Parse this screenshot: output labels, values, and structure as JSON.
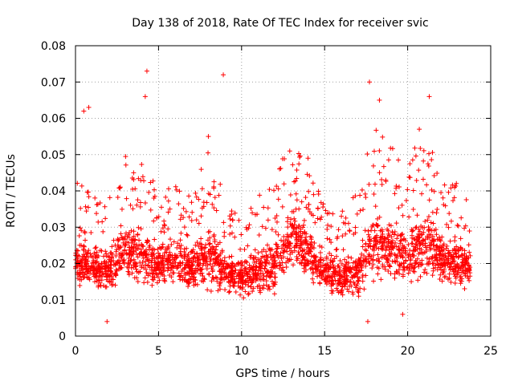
{
  "chart_data": {
    "type": "scatter",
    "title": "Day 138 of 2018, Rate Of TEC Index for receiver svic",
    "xlabel": "GPS time / hours",
    "ylabel": "ROTI / TECUs",
    "xlim": [
      0,
      25
    ],
    "ylim": [
      0,
      0.08
    ],
    "xticks": [
      0,
      5,
      10,
      15,
      20,
      25
    ],
    "yticks": [
      0,
      0.01,
      0.02,
      0.03,
      0.04,
      0.05,
      0.06,
      0.07,
      0.08
    ],
    "xtick_labels": [
      "0",
      "5",
      "10",
      "15",
      "20",
      "25"
    ],
    "ytick_labels": [
      "0",
      "0.01",
      "0.02",
      "0.03",
      "0.04",
      "0.05",
      "0.06",
      "0.07",
      "0.08"
    ],
    "grid": true,
    "marker": "+",
    "series_color": "#ff0000",
    "x_range": [
      0,
      23.8
    ],
    "sample_points": [
      {
        "x": 0.5,
        "y": 0.062
      },
      {
        "x": 0.8,
        "y": 0.063
      },
      {
        "x": 4.3,
        "y": 0.073
      },
      {
        "x": 4.2,
        "y": 0.066
      },
      {
        "x": 8.0,
        "y": 0.055
      },
      {
        "x": 8.9,
        "y": 0.072
      },
      {
        "x": 12.9,
        "y": 0.051
      },
      {
        "x": 14.0,
        "y": 0.049
      },
      {
        "x": 17.7,
        "y": 0.07
      },
      {
        "x": 18.3,
        "y": 0.065
      },
      {
        "x": 21.3,
        "y": 0.066
      },
      {
        "x": 20.7,
        "y": 0.057
      },
      {
        "x": 1.9,
        "y": 0.004
      },
      {
        "x": 17.6,
        "y": 0.004
      },
      {
        "x": 19.7,
        "y": 0.006
      }
    ],
    "envelope": {
      "description": "approximate typical spread of ROTI values by hour",
      "hours": [
        0,
        1,
        2,
        3,
        4,
        5,
        6,
        7,
        8,
        9,
        10,
        11,
        12,
        13,
        14,
        15,
        16,
        17,
        18,
        19,
        20,
        21,
        22,
        23,
        23.8
      ],
      "center": [
        0.021,
        0.019,
        0.018,
        0.024,
        0.022,
        0.02,
        0.021,
        0.018,
        0.023,
        0.018,
        0.016,
        0.018,
        0.019,
        0.028,
        0.023,
        0.018,
        0.016,
        0.018,
        0.026,
        0.024,
        0.022,
        0.026,
        0.021,
        0.02,
        0.019
      ],
      "spread": [
        0.009,
        0.008,
        0.008,
        0.01,
        0.01,
        0.008,
        0.008,
        0.008,
        0.011,
        0.008,
        0.007,
        0.008,
        0.009,
        0.011,
        0.009,
        0.007,
        0.007,
        0.009,
        0.013,
        0.011,
        0.01,
        0.012,
        0.009,
        0.009,
        0.008
      ]
    }
  }
}
